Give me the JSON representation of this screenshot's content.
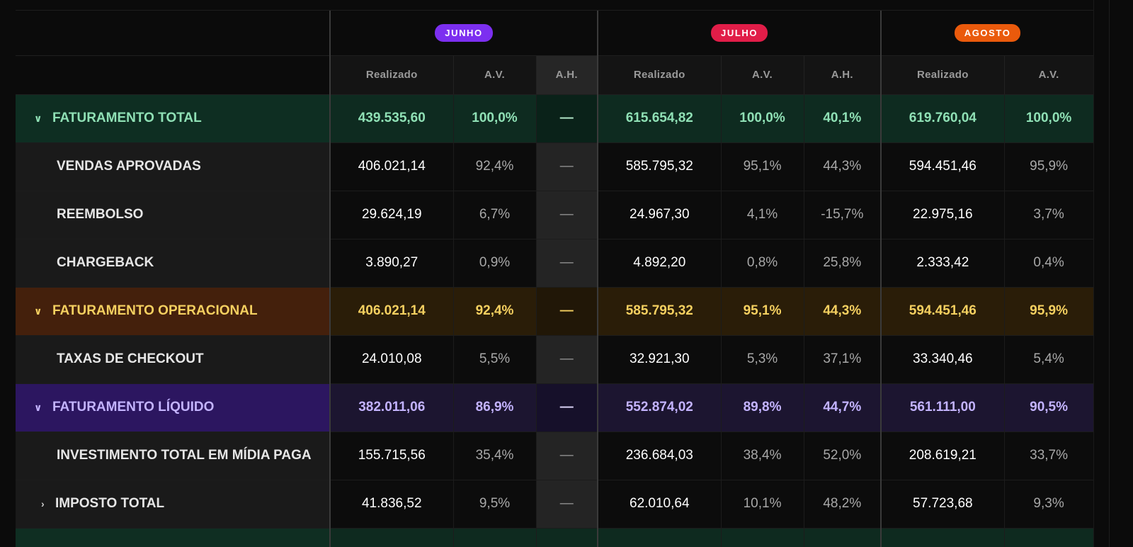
{
  "columns": {
    "sub_realizado": "Realizado",
    "sub_av": "A.V.",
    "sub_ah": "A.H."
  },
  "months": [
    {
      "label": "JUNHO",
      "color": "#7c2ff0"
    },
    {
      "label": "JULHO",
      "color": "#e11d48"
    },
    {
      "label": "AGOSTO",
      "color": "#ea5a0c"
    }
  ],
  "rows": [
    {
      "label": "FATURAMENTO TOTAL",
      "type": "group",
      "theme": "green",
      "expander": "expanded",
      "jun": {
        "r": "439.535,60",
        "av": "100,0%",
        "ah": "—"
      },
      "jul": {
        "r": "615.654,82",
        "av": "100,0%",
        "ah": "40,1%"
      },
      "ago": {
        "r": "619.760,04",
        "av": "100,0%"
      }
    },
    {
      "label": "VENDAS APROVADAS",
      "type": "detail",
      "jun": {
        "r": "406.021,14",
        "av": "92,4%",
        "ah": "—"
      },
      "jul": {
        "r": "585.795,32",
        "av": "95,1%",
        "ah": "44,3%"
      },
      "ago": {
        "r": "594.451,46",
        "av": "95,9%"
      }
    },
    {
      "label": "REEMBOLSO",
      "type": "detail",
      "jun": {
        "r": "29.624,19",
        "av": "6,7%",
        "ah": "—"
      },
      "jul": {
        "r": "24.967,30",
        "av": "4,1%",
        "ah": "-15,7%"
      },
      "ago": {
        "r": "22.975,16",
        "av": "3,7%"
      }
    },
    {
      "label": "CHARGEBACK",
      "type": "detail",
      "jun": {
        "r": "3.890,27",
        "av": "0,9%",
        "ah": "—"
      },
      "jul": {
        "r": "4.892,20",
        "av": "0,8%",
        "ah": "25,8%"
      },
      "ago": {
        "r": "2.333,42",
        "av": "0,4%"
      }
    },
    {
      "label": "FATURAMENTO OPERACIONAL",
      "type": "group",
      "theme": "orange",
      "expander": "expanded",
      "jun": {
        "r": "406.021,14",
        "av": "92,4%",
        "ah": "—"
      },
      "jul": {
        "r": "585.795,32",
        "av": "95,1%",
        "ah": "44,3%"
      },
      "ago": {
        "r": "594.451,46",
        "av": "95,9%"
      }
    },
    {
      "label": "TAXAS DE CHECKOUT",
      "type": "detail",
      "jun": {
        "r": "24.010,08",
        "av": "5,5%",
        "ah": "—"
      },
      "jul": {
        "r": "32.921,30",
        "av": "5,3%",
        "ah": "37,1%"
      },
      "ago": {
        "r": "33.340,46",
        "av": "5,4%"
      }
    },
    {
      "label": "FATURAMENTO LÍQUIDO",
      "type": "group",
      "theme": "purple",
      "expander": "expanded",
      "jun": {
        "r": "382.011,06",
        "av": "86,9%",
        "ah": "—"
      },
      "jul": {
        "r": "552.874,02",
        "av": "89,8%",
        "ah": "44,7%"
      },
      "ago": {
        "r": "561.111,00",
        "av": "90,5%"
      }
    },
    {
      "label": "INVESTIMENTO TOTAL EM MÍDIA PAGA",
      "type": "detail",
      "jun": {
        "r": "155.715,56",
        "av": "35,4%",
        "ah": "—"
      },
      "jul": {
        "r": "236.684,03",
        "av": "38,4%",
        "ah": "52,0%"
      },
      "ago": {
        "r": "208.619,21",
        "av": "33,7%"
      }
    },
    {
      "label": "IMPOSTO TOTAL",
      "type": "detail",
      "expander": "collapsed",
      "jun": {
        "r": "41.836,52",
        "av": "9,5%",
        "ah": "—"
      },
      "jul": {
        "r": "62.010,64",
        "av": "10,1%",
        "ah": "48,2%"
      },
      "ago": {
        "r": "57.723,68",
        "av": "9,3%"
      }
    }
  ]
}
